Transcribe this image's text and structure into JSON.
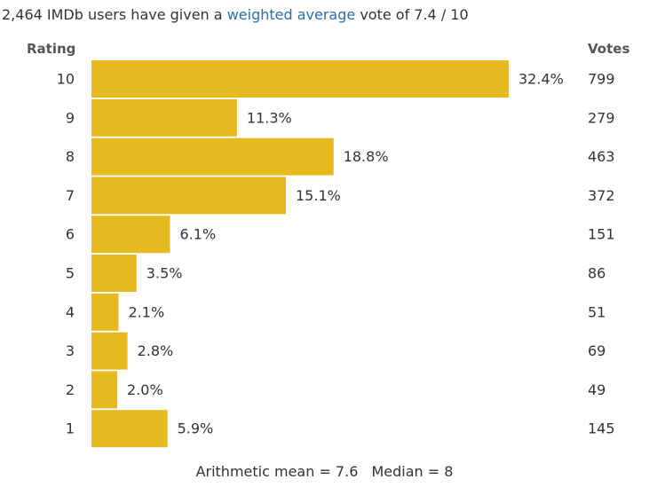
{
  "summary": {
    "prefix": "2,464 IMDb users have given a",
    "link": "weighted average",
    "suffix": "vote of 7.4 / 10"
  },
  "headers": {
    "rating": "Rating",
    "votes": "Votes"
  },
  "stats": {
    "mean": "Arithmetic mean = 7.6",
    "median": "Median = 8"
  },
  "colors": {
    "bar": "#e6b91e",
    "text": "#333333",
    "link": "#2c6ea3"
  },
  "chart_data": {
    "type": "bar",
    "orientation": "horizontal",
    "xlim": [
      0,
      32.4
    ],
    "categories": [
      "10",
      "9",
      "8",
      "7",
      "6",
      "5",
      "4",
      "3",
      "2",
      "1"
    ],
    "values": [
      32.4,
      11.3,
      18.8,
      15.1,
      6.1,
      3.5,
      2.1,
      2.8,
      2.0,
      5.9
    ],
    "value_labels": [
      "32.4%",
      "11.3%",
      "18.8%",
      "15.1%",
      "6.1%",
      "3.5%",
      "2.1%",
      "2.8%",
      "2.0%",
      "5.9%"
    ],
    "votes": [
      "799",
      "279",
      "463",
      "372",
      "151",
      "86",
      "51",
      "69",
      "49",
      "145"
    ]
  }
}
